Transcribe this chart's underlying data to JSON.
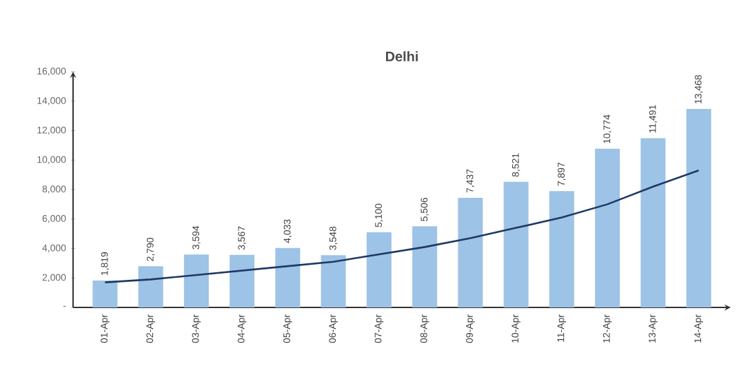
{
  "chart_data": {
    "type": "bar",
    "title": "Delhi",
    "categories": [
      "01-Apr",
      "02-Apr",
      "03-Apr",
      "04-Apr",
      "05-Apr",
      "06-Apr",
      "07-Apr",
      "08-Apr",
      "09-Apr",
      "10-Apr",
      "11-Apr",
      "12-Apr",
      "13-Apr",
      "14-Apr"
    ],
    "series": [
      {
        "color": "#9dc3e6",
        "values": [
          1819,
          2790,
          3594,
          3567,
          4033,
          3548,
          5100,
          5506,
          7437,
          8521,
          7897,
          10774,
          11491,
          13468
        ],
        "value_labels": [
          "1,819",
          "2,790",
          "3,594",
          "3,567",
          "4,033",
          "3,548",
          "5,100",
          "5,506",
          "7,437",
          "8,521",
          "7,897",
          "10,774",
          "11,491",
          "13,468"
        ]
      },
      {
        "type": "line",
        "color": "#1f3864",
        "values": [
          1700,
          1900,
          2200,
          2500,
          2800,
          3100,
          3600,
          4100,
          4700,
          5400,
          6100,
          7000,
          8200,
          9300
        ]
      }
    ],
    "ylim": [
      0,
      16000
    ],
    "yticks": [
      {
        "value": 0,
        "label": "-"
      },
      {
        "value": 2000,
        "label": "2,000"
      },
      {
        "value": 4000,
        "label": "4,000"
      },
      {
        "value": 6000,
        "label": "6,000"
      },
      {
        "value": 8000,
        "label": "8,000"
      },
      {
        "value": 10000,
        "label": "10,000"
      },
      {
        "value": 12000,
        "label": "12,000"
      },
      {
        "value": 14000,
        "label": "14,000"
      },
      {
        "value": 16000,
        "label": "16,000"
      }
    ],
    "grid": false
  }
}
